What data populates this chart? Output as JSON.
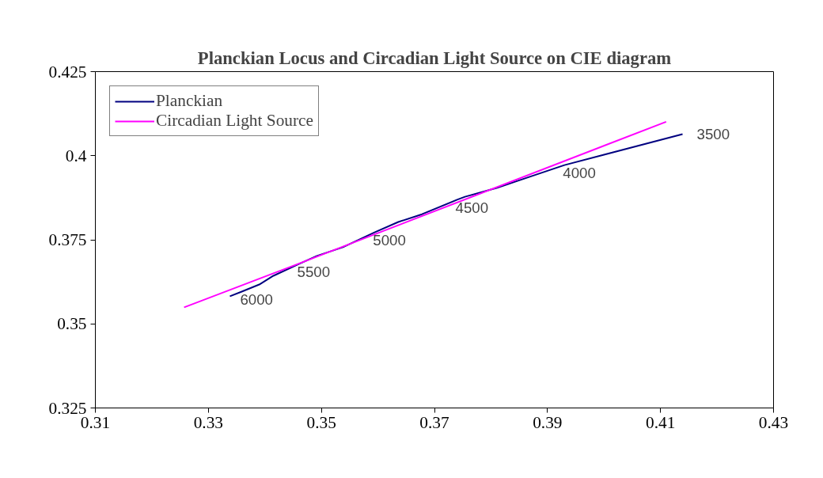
{
  "chart_data": {
    "type": "line",
    "title": "Planckian Locus and Circadian Light Source on CIE diagram",
    "series": [
      {
        "name": "Planckian",
        "color": "#000080",
        "x": [
          0.3338,
          0.3359,
          0.339,
          0.3415,
          0.346,
          0.3492,
          0.3538,
          0.3594,
          0.3636,
          0.3678,
          0.374,
          0.3754,
          0.381,
          0.3852,
          0.393,
          0.4,
          0.4139
        ],
        "values": [
          0.3582,
          0.3596,
          0.3617,
          0.3643,
          0.3678,
          0.3702,
          0.3728,
          0.3772,
          0.3803,
          0.3826,
          0.3869,
          0.3878,
          0.3904,
          0.3928,
          0.3972,
          0.4003,
          0.4064
        ]
      },
      {
        "name": "Circadian Light Source",
        "color": "#ff00ff",
        "x": [
          0.3257,
          0.346,
          0.411
        ],
        "values": [
          0.3549,
          0.3679,
          0.4101
        ]
      }
    ],
    "annotations": [
      {
        "text": "3500",
        "x": 0.4139,
        "y": 0.4064
      },
      {
        "text": "4000",
        "x": 0.393,
        "y": 0.3972
      },
      {
        "text": "4500",
        "x": 0.374,
        "y": 0.3869
      },
      {
        "text": "5000",
        "x": 0.3594,
        "y": 0.3772
      },
      {
        "text": "5500",
        "x": 0.346,
        "y": 0.3678
      },
      {
        "text": "6000",
        "x": 0.3359,
        "y": 0.3596
      }
    ],
    "xlim": [
      0.31,
      0.43
    ],
    "xticks": [
      0.31,
      0.33,
      0.35,
      0.37,
      0.39,
      0.41,
      0.43
    ],
    "ylim": [
      0.325,
      0.425
    ],
    "yticks": [
      0.325,
      0.35,
      0.375,
      0.4,
      0.425
    ],
    "grid": false,
    "legend": "top left",
    "marker": "none",
    "line_style": "solid"
  }
}
